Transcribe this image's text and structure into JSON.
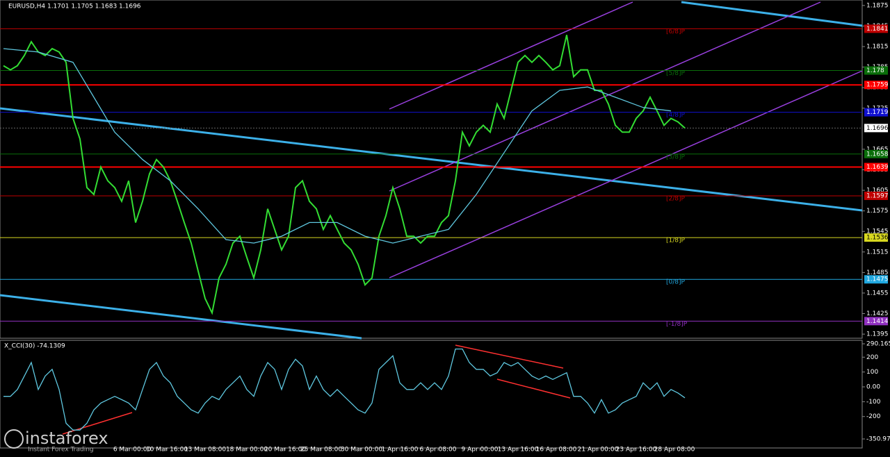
{
  "chart_data": [
    {
      "type": "line",
      "title": "EURUSD,H4  1.1701 1.1705 1.1683 1.1696",
      "xlim": [
        -0.5,
        123.5
      ],
      "ylim": [
        1.1389,
        1.1883
      ],
      "yticks": [
        1.1875,
        1.1845,
        1.1815,
        1.1785,
        1.1755,
        1.1725,
        1.1665,
        1.1635,
        1.1605,
        1.1575,
        1.1545,
        1.1515,
        1.1485,
        1.1455,
        1.1425,
        1.1395
      ],
      "series": [
        {
          "name": "EURUSD",
          "color": "#33dd33",
          "values": [
            1.1787,
            1.1781,
            1.1787,
            1.1802,
            1.1822,
            1.1807,
            1.1802,
            1.1812,
            1.1807,
            1.1792,
            1.171,
            1.168,
            1.1609,
            1.1599,
            1.1639,
            1.1619,
            1.1609,
            1.1589,
            1.1619,
            1.1558,
            1.1589,
            1.1629,
            1.165,
            1.1639,
            1.1619,
            1.1589,
            1.1558,
            1.1528,
            1.1487,
            1.1447,
            1.1426,
            1.1477,
            1.1497,
            1.1528,
            1.1538,
            1.1507,
            1.1477,
            1.1518,
            1.1578,
            1.1548,
            1.1518,
            1.1538,
            1.1609,
            1.1619,
            1.1589,
            1.1578,
            1.1548,
            1.1568,
            1.1548,
            1.1528,
            1.1518,
            1.1497,
            1.1467,
            1.1477,
            1.1538,
            1.1568,
            1.1609,
            1.1578,
            1.1538,
            1.1538,
            1.1528,
            1.1538,
            1.1538,
            1.1558,
            1.1568,
            1.1619,
            1.169,
            1.167,
            1.169,
            1.17,
            1.169,
            1.1731,
            1.171,
            1.1751,
            1.1792,
            1.1802,
            1.1792,
            1.1802,
            1.1792,
            1.1781,
            1.1787,
            1.1832,
            1.1771,
            1.1781,
            1.1781,
            1.1751,
            1.1751,
            1.1731,
            1.17,
            1.169,
            1.169,
            1.171,
            1.1721,
            1.1741,
            1.1721,
            1.17,
            1.171,
            1.1705,
            1.1696
          ]
        },
        {
          "name": "MA",
          "color": "#5fc8e0",
          "x": [
            0,
            5,
            10,
            13,
            16,
            20,
            24,
            28,
            32,
            36,
            40,
            44,
            48,
            52,
            56,
            60,
            64,
            68,
            72,
            76,
            80,
            84,
            88,
            92,
            96
          ],
          "values": [
            1.1812,
            1.1807,
            1.1792,
            1.1741,
            1.169,
            1.165,
            1.1619,
            1.1578,
            1.1533,
            1.1528,
            1.1538,
            1.1558,
            1.1558,
            1.1538,
            1.1528,
            1.1538,
            1.1548,
            1.1599,
            1.166,
            1.1721,
            1.1751,
            1.1756,
            1.1741,
            1.1726,
            1.1721
          ]
        }
      ],
      "current": 1.1696,
      "levels": [
        {
          "name": "[6/8]P",
          "price": 1.1841,
          "color": "#c00000"
        },
        {
          "name": "[5/8]P",
          "price": 1.178,
          "color": "#0a6e0a"
        },
        {
          "name": "[4/8]P",
          "price": 1.1719,
          "color": "#1010d0"
        },
        {
          "name": "[3/8]P",
          "price": 1.1658,
          "color": "#0a6e0a"
        },
        {
          "name": "[2/8]P",
          "price": 1.1597,
          "color": "#c00000"
        },
        {
          "name": "[1/8]P",
          "price": 1.1536,
          "color": "#d8d820"
        },
        {
          "name": "[0/8]P",
          "price": 1.1475,
          "color": "#20a8e0"
        },
        {
          "name": "[-1/8]P",
          "price": 1.1414,
          "color": "#9030c0"
        }
      ],
      "lines": [
        {
          "price": 1.1759,
          "color": "#ff0000"
        },
        {
          "price": 1.1639,
          "color": "#ff0000"
        }
      ]
    },
    {
      "type": "line",
      "title": "X_CCI(30) -74.1309",
      "xlim": [
        -0.5,
        123.5
      ],
      "ylim": [
        -350.973,
        290.1656
      ],
      "yticks": [
        290.1656,
        200,
        100,
        {
          "value": 0,
          "label": "0.00"
        },
        -100,
        -200,
        -350.973
      ],
      "xticks": [
        {
          "value": 18.5,
          "label": "6 Mar 00:00"
        },
        {
          "value": 23.5,
          "label": "10 Mar 16:00"
        },
        {
          "value": 29,
          "label": "13 Mar 08:00"
        },
        {
          "value": 35,
          "label": "18 Mar 00:00"
        },
        {
          "value": 40.5,
          "label": "20 Mar 16:00"
        },
        {
          "value": 45.7,
          "label": "25 Mar 08:00"
        },
        {
          "value": 51.5,
          "label": "30 Mar 00:00"
        },
        {
          "value": 57,
          "label": "1 Apr 16:00"
        },
        {
          "value": 62.5,
          "label": "6 Apr 08:00"
        },
        {
          "value": 68.5,
          "label": "9 Apr 00:00"
        },
        {
          "value": 74,
          "label": "13 Apr 16:00"
        },
        {
          "value": 79.5,
          "label": "16 Apr 08:00"
        },
        {
          "value": 85.5,
          "label": "21 Apr 00:00"
        },
        {
          "value": 91,
          "label": "23 Apr 16:00"
        },
        {
          "value": 96.5,
          "label": "28 Apr 08:00"
        }
      ],
      "series": [
        {
          "name": "CCI",
          "color": "#5fc8e0",
          "values": [
            -64,
            -64,
            -18,
            73,
            164,
            -18,
            73,
            118,
            -18,
            -245,
            -291,
            -291,
            -245,
            -155,
            -109,
            -86,
            -64,
            -86,
            -109,
            -155,
            -18,
            118,
            164,
            73,
            27,
            -64,
            -109,
            -155,
            -177,
            -109,
            -64,
            -86,
            -18,
            27,
            73,
            -18,
            -64,
            73,
            164,
            118,
            -18,
            118,
            186,
            141,
            -18,
            73,
            -18,
            -64,
            -18,
            -64,
            -109,
            -155,
            -177,
            -109,
            118,
            164,
            209,
            27,
            -18,
            -18,
            27,
            -18,
            27,
            -18,
            73,
            255,
            255,
            164,
            118,
            118,
            73,
            95,
            164,
            141,
            164,
            118,
            73,
            50,
            73,
            50,
            73,
            95,
            -64,
            -64,
            -109,
            -177,
            -86,
            -177,
            -155,
            -109,
            -86,
            -64,
            27,
            -18,
            27,
            -64,
            -18,
            -41,
            -74
          ]
        }
      ]
    }
  ],
  "watermark": {
    "brand": "instaforex",
    "tagline": "Instant Forex Trading"
  }
}
